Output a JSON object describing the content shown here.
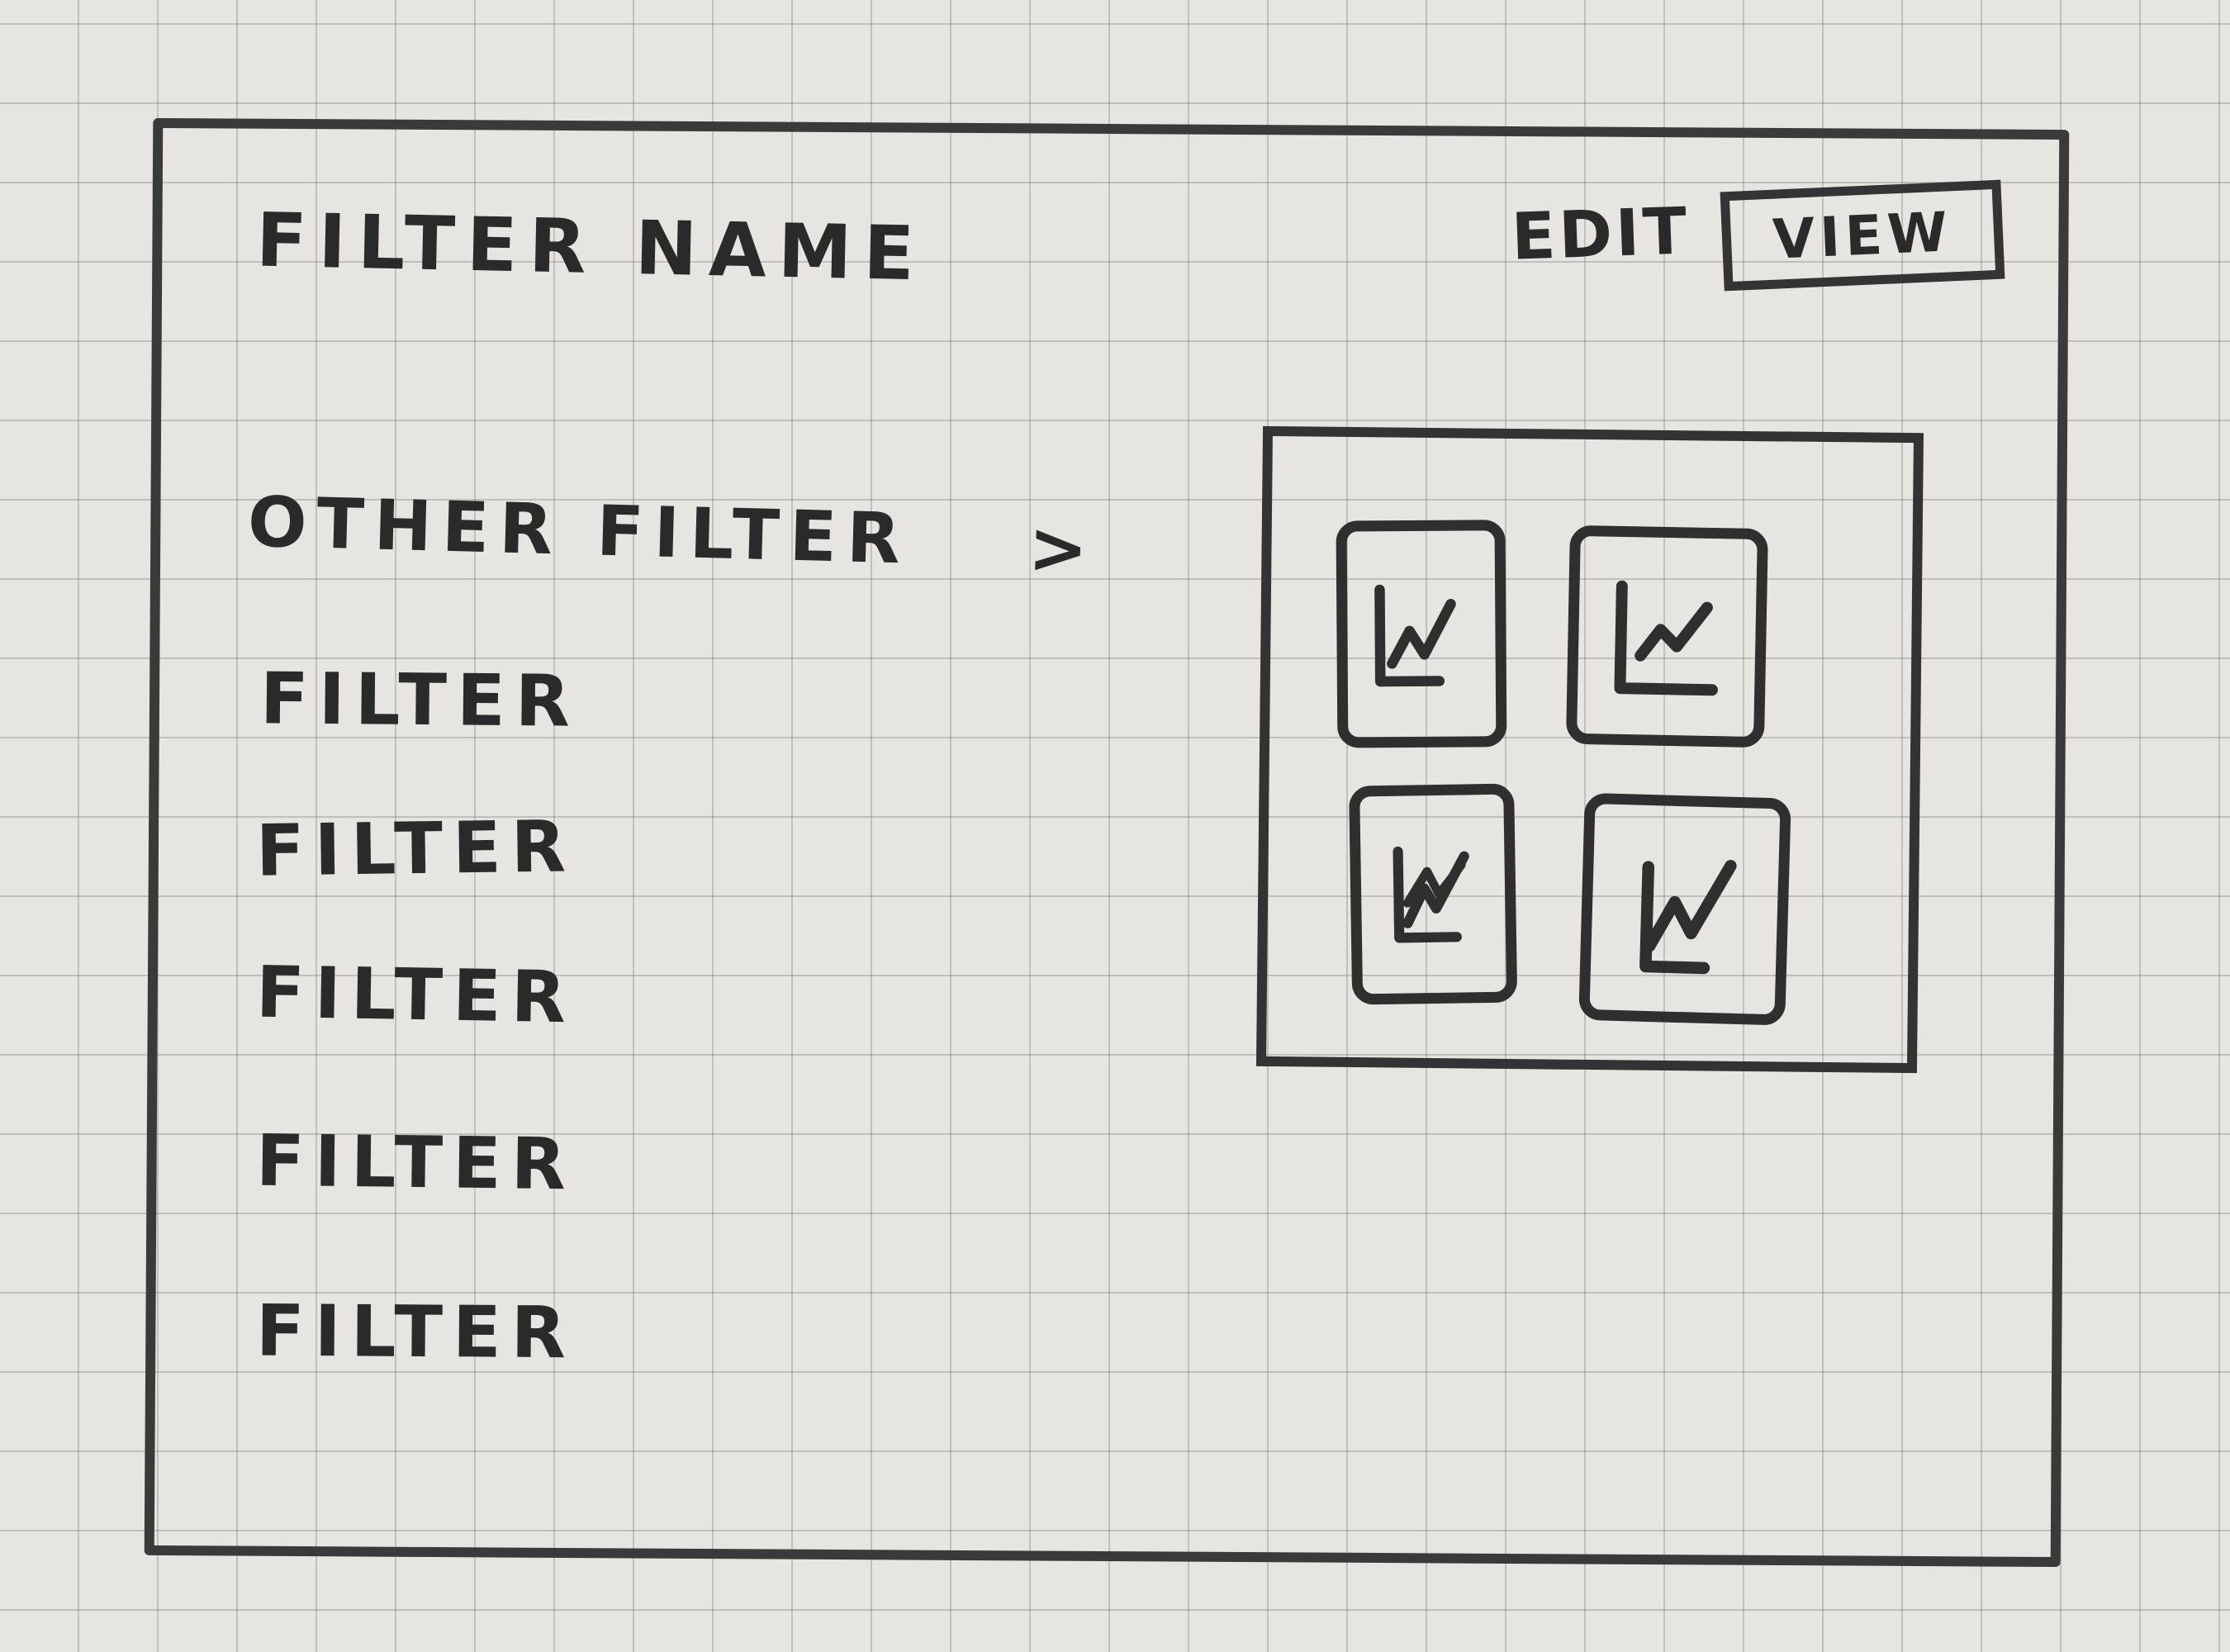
{
  "header": {
    "title": "FILTER NAME",
    "edit_label": "EDIT",
    "view_label": "VIEW"
  },
  "filters": {
    "other_filter_label": "OTHER FILTER",
    "other_filter_chevron": ">",
    "items": [
      {
        "label": "FILTER"
      },
      {
        "label": "FILTER"
      },
      {
        "label": "FILTER"
      },
      {
        "label": "FILTER"
      },
      {
        "label": "FILTER"
      }
    ]
  },
  "chart_panel": {
    "tiles": [
      {
        "icon": "line-chart-icon"
      },
      {
        "icon": "line-chart-icon"
      },
      {
        "icon": "line-chart-icon"
      },
      {
        "icon": "line-chart-icon"
      }
    ]
  },
  "colors": {
    "paper": "#e6e5e1",
    "ink": "#2b2b2b",
    "grid": "#9a9a9a"
  }
}
